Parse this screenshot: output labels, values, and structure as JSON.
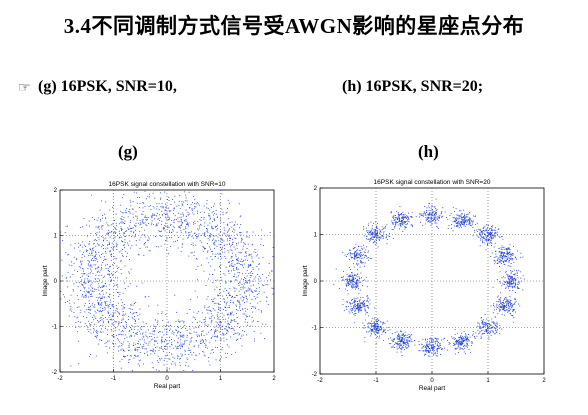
{
  "title": "3.4不同调制方式信号受AWGN影响的星座点分布",
  "bullet_icon": "pointing-hand-icon",
  "subtitle": {
    "g": "(g) 16PSK, SNR=10,",
    "h": "(h) 16PSK, SNR=20;"
  },
  "panel_labels": {
    "g": "(g)",
    "h": "(h)"
  },
  "colors": {
    "points": "#1f3fd6",
    "grid": "#555555",
    "axes": "#000000"
  },
  "chart_data": [
    {
      "type": "scatter",
      "title": "16PSK signal constellation with SNR=10",
      "xlabel": "Real part",
      "ylabel": "Image part",
      "xlim": [
        -2,
        2
      ],
      "ylim": [
        -2,
        2
      ],
      "xticks": [
        -2,
        -1,
        0,
        1,
        2
      ],
      "yticks": [
        -2,
        -1,
        0,
        1,
        2
      ],
      "grid": "dotted at 0 and ±1",
      "constellation": "16PSK",
      "radius": 1.4142,
      "snr_db": 10,
      "point_count": 2400
    },
    {
      "type": "scatter",
      "title": "16PSK signal constellation with SNR=20",
      "xlabel": "Real part",
      "ylabel": "Image part",
      "xlim": [
        -2,
        2
      ],
      "ylim": [
        -2,
        2
      ],
      "xticks": [
        -2,
        -1,
        0,
        1,
        2
      ],
      "yticks": [
        -2,
        -1,
        0,
        1,
        2
      ],
      "grid": "dotted at 0 and ±1",
      "constellation": "16PSK",
      "radius": 1.4142,
      "snr_db": 20,
      "point_count": 2400
    }
  ]
}
